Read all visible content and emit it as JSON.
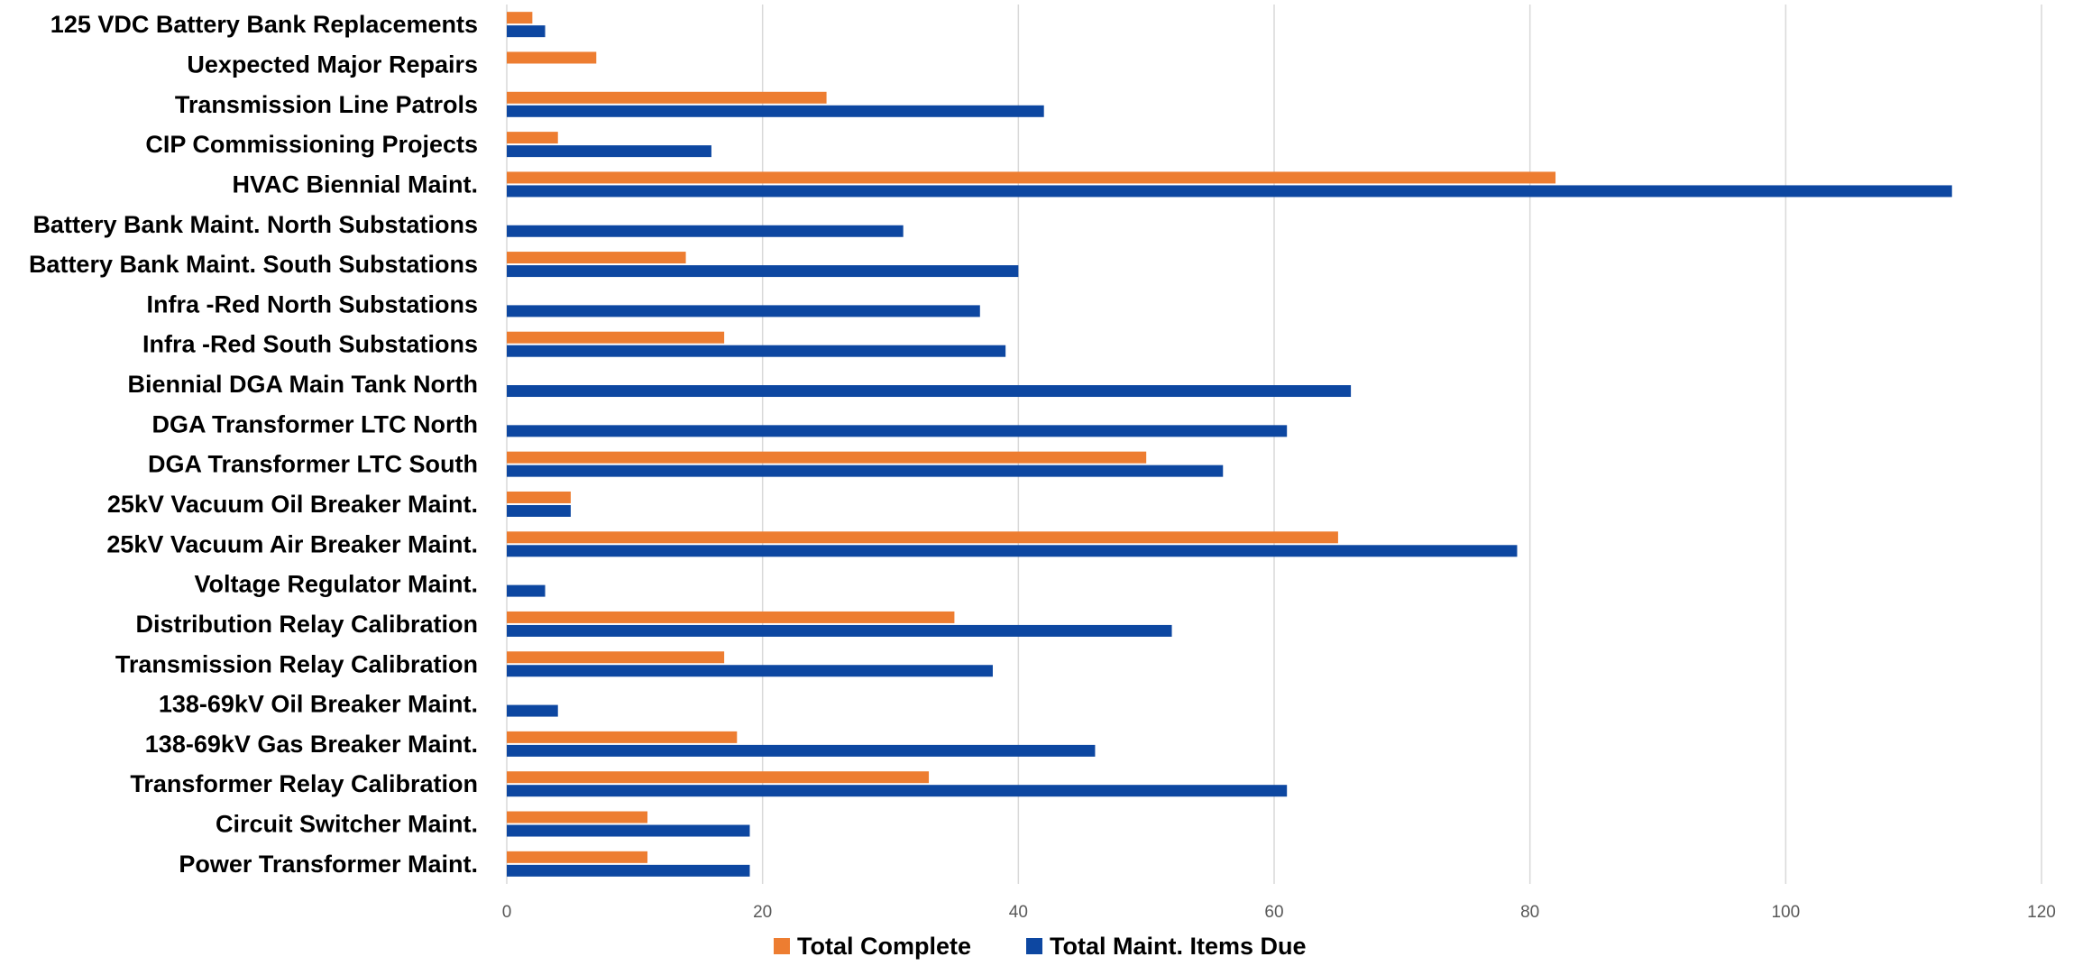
{
  "chart_data": {
    "type": "bar",
    "orientation": "horizontal",
    "categories": [
      "125 VDC Battery Bank Replacements",
      "Uexpected Major Repairs",
      "Transmission Line Patrols",
      "CIP Commissioning Projects",
      "HVAC Biennial Maint.",
      "Battery Bank Maint. North Substations",
      "Battery Bank Maint. South Substations",
      "Infra -Red North Substations",
      "Infra -Red South Substations",
      "Biennial DGA Main Tank North",
      "DGA Transformer LTC North",
      "DGA Transformer LTC South",
      "25kV Vacuum Oil Breaker Maint.",
      "25kV Vacuum Air Breaker Maint.",
      "Voltage Regulator Maint.",
      "Distribution Relay Calibration",
      "Transmission Relay Calibration",
      "138-69kV Oil Breaker Maint.",
      "138-69kV Gas Breaker Maint.",
      "Transformer Relay Calibration",
      "Circuit Switcher Maint.",
      "Power Transformer Maint."
    ],
    "series": [
      {
        "name": "Total Complete",
        "color": "#ED7D31",
        "values": [
          2,
          7,
          25,
          4,
          82,
          0,
          14,
          0,
          17,
          0,
          0,
          50,
          5,
          65,
          0,
          35,
          17,
          0,
          18,
          33,
          11,
          11
        ]
      },
      {
        "name": "Total Maint. Items Due",
        "color": "#0D47A1",
        "values": [
          3,
          0,
          42,
          16,
          113,
          31,
          40,
          37,
          39,
          66,
          61,
          56,
          5,
          79,
          3,
          52,
          38,
          4,
          46,
          61,
          19,
          19
        ]
      }
    ],
    "xlim": [
      0,
      120
    ],
    "xticks": [
      0,
      20,
      40,
      60,
      80,
      100,
      120
    ],
    "grid": true,
    "legend_position": "bottom"
  }
}
